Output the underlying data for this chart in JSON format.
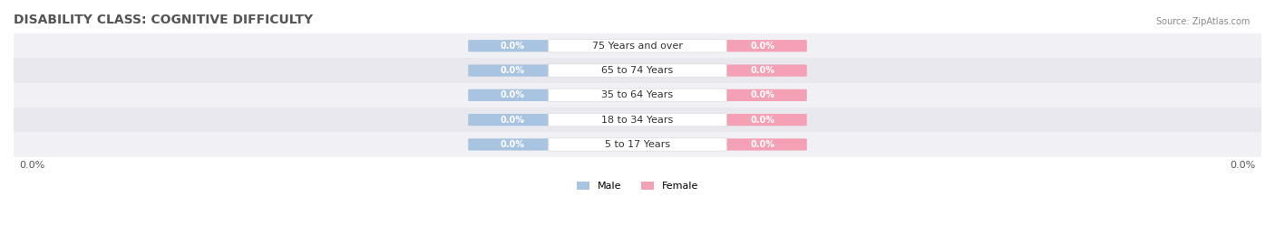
{
  "title": "DISABILITY CLASS: COGNITIVE DIFFICULTY",
  "source": "Source: ZipAtlas.com",
  "categories": [
    "5 to 17 Years",
    "18 to 34 Years",
    "35 to 64 Years",
    "65 to 74 Years",
    "75 Years and over"
  ],
  "male_values": [
    0.0,
    0.0,
    0.0,
    0.0,
    0.0
  ],
  "female_values": [
    0.0,
    0.0,
    0.0,
    0.0,
    0.0
  ],
  "male_color": "#a8c4e0",
  "female_color": "#f4a0b5",
  "male_label": "Male",
  "female_label": "Female",
  "bar_bg_color": "#e8e8ee",
  "row_bg_colors": [
    "#f0f0f5",
    "#e8e8ee"
  ],
  "title_fontsize": 10,
  "label_fontsize": 8,
  "xlim": [
    -1.0,
    1.0
  ],
  "center_label_color": "#333333",
  "value_text_color": "#ffffff",
  "x_tick_labels": [
    "0.0%",
    "0.0%"
  ],
  "background_color": "#ffffff"
}
